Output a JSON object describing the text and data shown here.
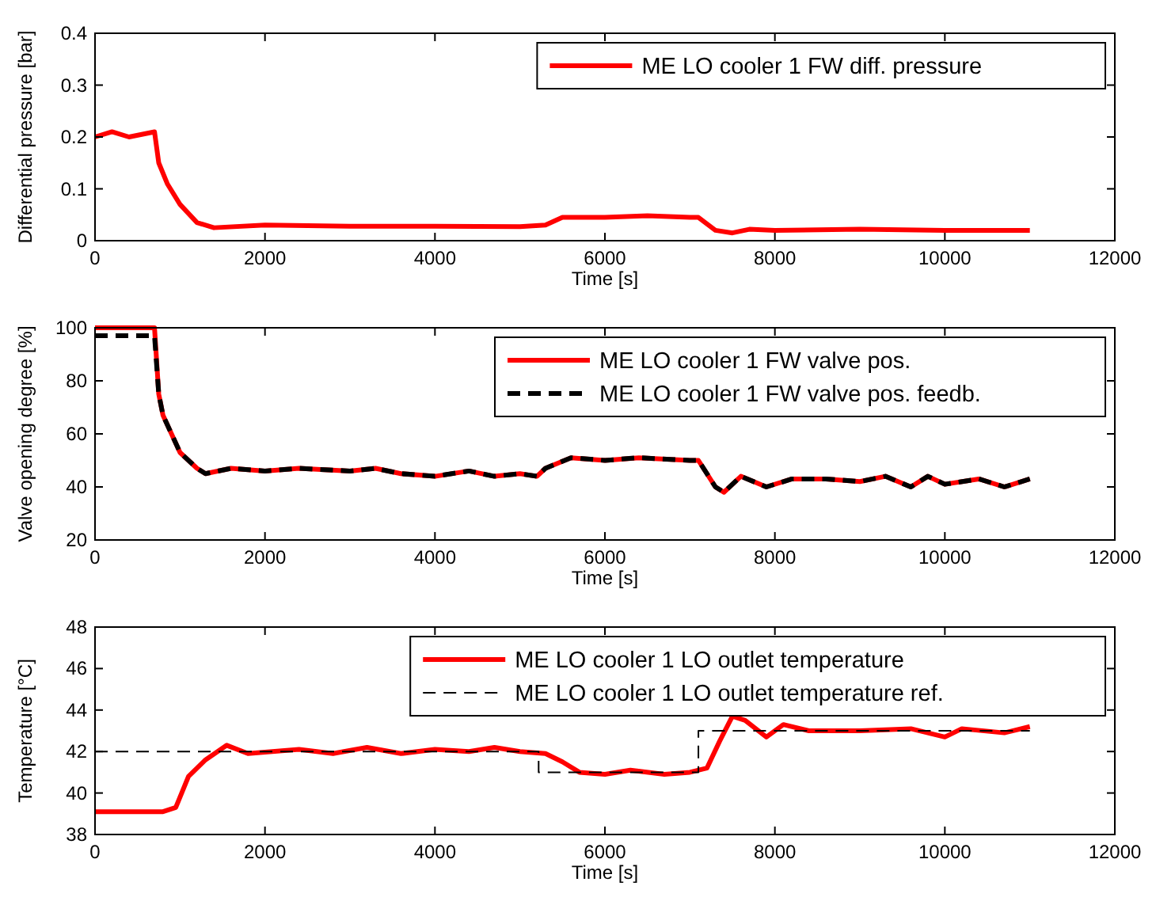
{
  "chart_data": [
    {
      "type": "line",
      "xlabel": "Time [s]",
      "ylabel": "Differential pressure [bar]",
      "xlim": [
        0,
        12000
      ],
      "xticks": [
        0,
        2000,
        4000,
        6000,
        8000,
        10000,
        12000
      ],
      "ylim": [
        0,
        0.4
      ],
      "yticks": [
        0,
        0.1,
        0.2,
        0.3,
        0.4
      ],
      "legend": "top right",
      "grid": false,
      "series": [
        {
          "name": "ME LO cooler 1 FW diff. pressure",
          "color": "#ff0000",
          "x": [
            0,
            200,
            400,
            700,
            750,
            850,
            1000,
            1200,
            1400,
            2000,
            3000,
            4000,
            5000,
            5300,
            5500,
            6000,
            6500,
            7000,
            7100,
            7300,
            7500,
            7700,
            8000,
            9000,
            10000,
            11000
          ],
          "values": [
            0.2,
            0.21,
            0.2,
            0.21,
            0.15,
            0.11,
            0.07,
            0.035,
            0.025,
            0.03,
            0.028,
            0.028,
            0.027,
            0.03,
            0.045,
            0.045,
            0.048,
            0.045,
            0.045,
            0.02,
            0.015,
            0.022,
            0.02,
            0.022,
            0.02,
            0.02
          ]
        }
      ]
    },
    {
      "type": "line",
      "xlabel": "Time [s]",
      "ylabel": "Valve opening degree [%]",
      "xlim": [
        0,
        12000
      ],
      "xticks": [
        0,
        2000,
        4000,
        6000,
        8000,
        10000,
        12000
      ],
      "ylim": [
        20,
        100
      ],
      "yticks": [
        20,
        40,
        60,
        80,
        100
      ],
      "legend": "top right",
      "grid": false,
      "series": [
        {
          "name": "ME LO cooler 1 FW valve pos.",
          "color": "#ff0000",
          "line_style": "solid",
          "x": [
            0,
            700,
            750,
            800,
            900,
            1000,
            1200,
            1300,
            1600,
            2000,
            2400,
            3000,
            3300,
            3600,
            4000,
            4400,
            4700,
            5000,
            5200,
            5300,
            5600,
            6000,
            6400,
            7000,
            7100,
            7300,
            7400,
            7600,
            7900,
            8200,
            8600,
            9000,
            9300,
            9600,
            9800,
            10000,
            10400,
            10700,
            11000
          ],
          "values": [
            100,
            100,
            75,
            67,
            60,
            53,
            47,
            45,
            47,
            46,
            47,
            46,
            47,
            45,
            44,
            46,
            44,
            45,
            44,
            47,
            51,
            50,
            51,
            50,
            50,
            40,
            38,
            44,
            40,
            43,
            43,
            42,
            44,
            40,
            44,
            41,
            43,
            40,
            43
          ]
        },
        {
          "name": "ME LO cooler 1 FW valve pos. feedb.",
          "color": "#000000",
          "line_style": "dashed",
          "x": [
            0,
            700,
            750,
            800,
            900,
            1000,
            1200,
            1300,
            1600,
            2000,
            2400,
            3000,
            3300,
            3600,
            4000,
            4400,
            4700,
            5000,
            5200,
            5300,
            5600,
            6000,
            6400,
            7000,
            7100,
            7300,
            7400,
            7600,
            7900,
            8200,
            8600,
            9000,
            9300,
            9600,
            9800,
            10000,
            10400,
            10700,
            11000
          ],
          "values": [
            97,
            97,
            75,
            67,
            60,
            53,
            47,
            45,
            47,
            46,
            47,
            46,
            47,
            45,
            44,
            46,
            44,
            45,
            44,
            47,
            51,
            50,
            51,
            50,
            50,
            40,
            38,
            44,
            40,
            43,
            43,
            42,
            44,
            40,
            44,
            41,
            43,
            40,
            43
          ]
        }
      ]
    },
    {
      "type": "line",
      "xlabel": "Time [s]",
      "ylabel": "Temperature [°C]",
      "xlim": [
        0,
        12000
      ],
      "xticks": [
        0,
        2000,
        4000,
        6000,
        8000,
        10000,
        12000
      ],
      "ylim": [
        38,
        48
      ],
      "yticks": [
        38,
        40,
        42,
        44,
        46,
        48
      ],
      "legend": "top right",
      "grid": false,
      "series": [
        {
          "name": "ME LO cooler 1 LO outlet temperature",
          "color": "#ff0000",
          "line_style": "solid",
          "x": [
            0,
            800,
            950,
            1100,
            1300,
            1550,
            1800,
            2400,
            2800,
            3200,
            3600,
            4000,
            4400,
            4700,
            5000,
            5300,
            5500,
            5700,
            6000,
            6300,
            6700,
            7000,
            7200,
            7350,
            7500,
            7650,
            7900,
            8100,
            8400,
            9000,
            9600,
            10000,
            10200,
            10700,
            11000
          ],
          "values": [
            39.1,
            39.1,
            39.3,
            40.8,
            41.6,
            42.3,
            41.9,
            42.1,
            41.9,
            42.2,
            41.9,
            42.1,
            42.0,
            42.2,
            42.0,
            41.9,
            41.5,
            41.0,
            40.9,
            41.1,
            40.9,
            41.0,
            41.2,
            42.5,
            43.7,
            43.5,
            42.7,
            43.3,
            43.0,
            43.0,
            43.1,
            42.7,
            43.1,
            42.9,
            43.2
          ]
        },
        {
          "type": "step",
          "name": "ME LO cooler 1 LO outlet temperature ref.",
          "color": "#000000",
          "line_style": "dashed",
          "x": [
            0,
            5220,
            7100,
            11000
          ],
          "values": [
            42,
            41,
            43,
            43
          ]
        }
      ]
    }
  ]
}
